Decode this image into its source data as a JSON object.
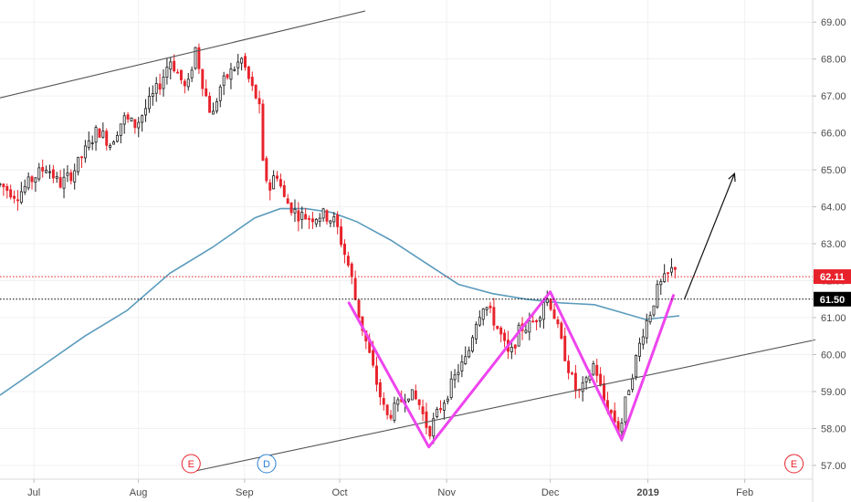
{
  "chart_data": {
    "type": "candlestick",
    "title": "",
    "xlabel": "",
    "ylabel": "",
    "ylim": [
      56.8,
      69.4
    ],
    "price_axis_ticks": [
      "57.00",
      "58.00",
      "59.00",
      "60.00",
      "61.00",
      "62.00",
      "63.00",
      "64.00",
      "65.00",
      "66.00",
      "67.00",
      "68.00",
      "69.00"
    ],
    "time_axis_labels": [
      {
        "label": "Jul",
        "t": 0.04,
        "bold": false
      },
      {
        "label": "Aug",
        "t": 0.163,
        "bold": false
      },
      {
        "label": "Sep",
        "t": 0.288,
        "bold": false
      },
      {
        "label": "Oct",
        "t": 0.4,
        "bold": false
      },
      {
        "label": "Nov",
        "t": 0.526,
        "bold": false
      },
      {
        "label": "Dec",
        "t": 0.648,
        "bold": false
      },
      {
        "label": "2019",
        "t": 0.763,
        "bold": true
      },
      {
        "label": "Feb",
        "t": 0.877,
        "bold": false
      }
    ],
    "price_tags": [
      {
        "label": "62.11",
        "value": 62.11,
        "style": "red-dotted",
        "color": "#e8222b"
      },
      {
        "label": "61.50",
        "value": 61.5,
        "style": "black-dotted",
        "color": "#000000"
      }
    ],
    "price_path": [
      [
        0.0,
        64.6
      ],
      [
        0.02,
        64.3
      ],
      [
        0.04,
        64.8
      ],
      [
        0.055,
        65.1
      ],
      [
        0.07,
        64.6
      ],
      [
        0.085,
        64.9
      ],
      [
        0.1,
        65.5
      ],
      [
        0.115,
        66.1
      ],
      [
        0.13,
        65.7
      ],
      [
        0.145,
        66.4
      ],
      [
        0.16,
        66.2
      ],
      [
        0.175,
        66.8
      ],
      [
        0.19,
        67.4
      ],
      [
        0.2,
        68.0
      ],
      [
        0.21,
        67.6
      ],
      [
        0.22,
        67.1
      ],
      [
        0.23,
        68.3
      ],
      [
        0.24,
        67.2
      ],
      [
        0.25,
        66.4
      ],
      [
        0.258,
        67.2
      ],
      [
        0.27,
        67.6
      ],
      [
        0.285,
        68.0
      ],
      [
        0.295,
        67.3
      ],
      [
        0.305,
        66.8
      ],
      [
        0.31,
        65.0
      ],
      [
        0.318,
        64.5
      ],
      [
        0.325,
        65.0
      ],
      [
        0.335,
        64.2
      ],
      [
        0.35,
        63.8
      ],
      [
        0.365,
        63.7
      ],
      [
        0.38,
        63.8
      ],
      [
        0.395,
        63.6
      ],
      [
        0.405,
        62.8
      ],
      [
        0.413,
        62.2
      ],
      [
        0.42,
        61.3
      ],
      [
        0.435,
        60.0
      ],
      [
        0.445,
        59.1
      ],
      [
        0.455,
        58.3
      ],
      [
        0.468,
        58.6
      ],
      [
        0.48,
        59.0
      ],
      [
        0.493,
        58.7
      ],
      [
        0.505,
        57.9
      ],
      [
        0.515,
        58.4
      ],
      [
        0.53,
        59.1
      ],
      [
        0.54,
        59.6
      ],
      [
        0.55,
        59.9
      ],
      [
        0.56,
        60.9
      ],
      [
        0.57,
        61.4
      ],
      [
        0.58,
        61.0
      ],
      [
        0.59,
        60.5
      ],
      [
        0.6,
        59.9
      ],
      [
        0.612,
        60.7
      ],
      [
        0.625,
        60.8
      ],
      [
        0.635,
        61.1
      ],
      [
        0.642,
        61.6
      ],
      [
        0.65,
        61.3
      ],
      [
        0.66,
        60.4
      ],
      [
        0.67,
        59.6
      ],
      [
        0.68,
        58.9
      ],
      [
        0.69,
        59.2
      ],
      [
        0.7,
        59.8
      ],
      [
        0.71,
        58.8
      ],
      [
        0.72,
        58.4
      ],
      [
        0.73,
        57.9
      ],
      [
        0.738,
        58.9
      ],
      [
        0.748,
        59.8
      ],
      [
        0.758,
        60.7
      ],
      [
        0.765,
        61.1
      ],
      [
        0.775,
        61.8
      ],
      [
        0.785,
        62.1
      ],
      [
        0.795,
        62.4
      ]
    ],
    "moving_average": [
      [
        0.0,
        58.9
      ],
      [
        0.05,
        59.7
      ],
      [
        0.1,
        60.5
      ],
      [
        0.15,
        61.2
      ],
      [
        0.2,
        62.2
      ],
      [
        0.25,
        62.9
      ],
      [
        0.3,
        63.7
      ],
      [
        0.33,
        63.95
      ],
      [
        0.36,
        63.95
      ],
      [
        0.39,
        63.85
      ],
      [
        0.42,
        63.6
      ],
      [
        0.46,
        63.1
      ],
      [
        0.5,
        62.5
      ],
      [
        0.54,
        61.9
      ],
      [
        0.58,
        61.65
      ],
      [
        0.62,
        61.5
      ],
      [
        0.66,
        61.4
      ],
      [
        0.7,
        61.35
      ],
      [
        0.73,
        61.15
      ],
      [
        0.76,
        60.95
      ],
      [
        0.8,
        61.05
      ]
    ],
    "channel_lines": [
      {
        "from": [
          0.0,
          66.95
        ],
        "to": [
          0.43,
          69.3
        ]
      },
      {
        "from": [
          0.23,
          56.85
        ],
        "to": [
          0.96,
          60.4
        ]
      }
    ],
    "wm_pattern": [
      [
        0.411,
        61.4
      ],
      [
        0.505,
        57.5
      ],
      [
        0.648,
        61.7
      ],
      [
        0.732,
        57.7
      ],
      [
        0.793,
        61.6
      ]
    ],
    "projection_arrow": [
      [
        0.806,
        61.5
      ],
      [
        0.865,
        64.9
      ]
    ],
    "events": [
      {
        "label": "E",
        "t": 0.225,
        "color": "#e8222b"
      },
      {
        "label": "D",
        "t": 0.314,
        "color": "#2a7fd4"
      },
      {
        "label": "E",
        "t": 0.935,
        "color": "#e8222b"
      }
    ],
    "colors": {
      "up": "#1e1e1e",
      "down": "#e8222b",
      "moving_average": "#5b9bbd",
      "pattern": "#ee44ee",
      "grid": "#f1f1f1"
    }
  }
}
